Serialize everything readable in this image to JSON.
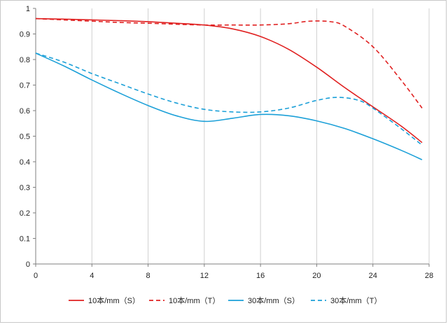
{
  "chart_data": {
    "type": "line",
    "title": "",
    "xlabel": "",
    "ylabel": "",
    "xlim": [
      0,
      28
    ],
    "ylim": [
      0,
      1
    ],
    "x_ticks": [
      "0",
      "4",
      "8",
      "12",
      "16",
      "20",
      "24",
      "28"
    ],
    "y_ticks": [
      "0",
      "0.1",
      "0.2",
      "0.3",
      "0.4",
      "0.5",
      "0.6",
      "0.7",
      "0.8",
      "0.9",
      "1"
    ],
    "grid": "vertical",
    "legend_position": "bottom",
    "series": [
      {
        "name": "10本/mm（S）",
        "color": "#e02020",
        "dash": "solid",
        "x": [
          0,
          2,
          4,
          6,
          8,
          10,
          12,
          14,
          16,
          18,
          20,
          22,
          24,
          26,
          27.5
        ],
        "y": [
          0.96,
          0.958,
          0.955,
          0.952,
          0.948,
          0.942,
          0.935,
          0.92,
          0.89,
          0.84,
          0.77,
          0.69,
          0.615,
          0.54,
          0.475
        ]
      },
      {
        "name": "10本/mm（T）",
        "color": "#e02020",
        "dash": "dashed",
        "x": [
          0,
          2,
          4,
          6,
          8,
          10,
          12,
          14,
          16,
          18,
          19.5,
          21,
          22,
          24,
          26,
          27.5
        ],
        "y": [
          0.96,
          0.955,
          0.95,
          0.945,
          0.942,
          0.938,
          0.935,
          0.935,
          0.935,
          0.94,
          0.95,
          0.948,
          0.93,
          0.85,
          0.72,
          0.61
        ]
      },
      {
        "name": "30本/mm（S）",
        "color": "#1ca0d8",
        "dash": "solid",
        "x": [
          0,
          2,
          4,
          6,
          8,
          10,
          12,
          14,
          16,
          18,
          20,
          22,
          24,
          26,
          27.5
        ],
        "y": [
          0.825,
          0.775,
          0.72,
          0.668,
          0.62,
          0.58,
          0.558,
          0.57,
          0.585,
          0.58,
          0.56,
          0.53,
          0.49,
          0.445,
          0.408
        ]
      },
      {
        "name": "30本/mm（T）",
        "color": "#1ca0d8",
        "dash": "dashed",
        "x": [
          0,
          2,
          4,
          6,
          8,
          10,
          12,
          14,
          16,
          18,
          20,
          21.5,
          23,
          24,
          26,
          27.5
        ],
        "y": [
          0.825,
          0.79,
          0.745,
          0.705,
          0.665,
          0.63,
          0.605,
          0.595,
          0.595,
          0.61,
          0.64,
          0.652,
          0.64,
          0.61,
          0.53,
          0.465
        ]
      }
    ]
  }
}
